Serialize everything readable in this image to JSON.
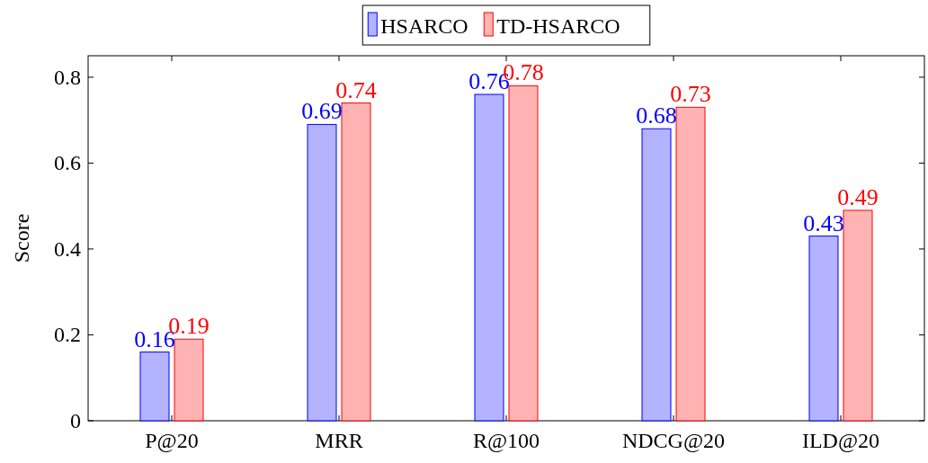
{
  "chart_data": {
    "type": "bar",
    "ylabel": "Score",
    "categories": [
      "P@20",
      "MRR",
      "R@100",
      "NDCG@20",
      "ILD@20"
    ],
    "series": [
      {
        "name": "HSARCO",
        "color": "#b3b3ff",
        "values": [
          0.16,
          0.69,
          0.76,
          0.68,
          0.43
        ]
      },
      {
        "name": "TD-HSARCO",
        "color": "#ffb3b3",
        "values": [
          0.19,
          0.74,
          0.78,
          0.73,
          0.49
        ]
      }
    ],
    "ylim": [
      0,
      0.85
    ],
    "yticks": [
      0,
      0.2,
      0.4,
      0.6,
      0.8
    ],
    "data_labels": true,
    "legend": "top",
    "grid": false
  }
}
